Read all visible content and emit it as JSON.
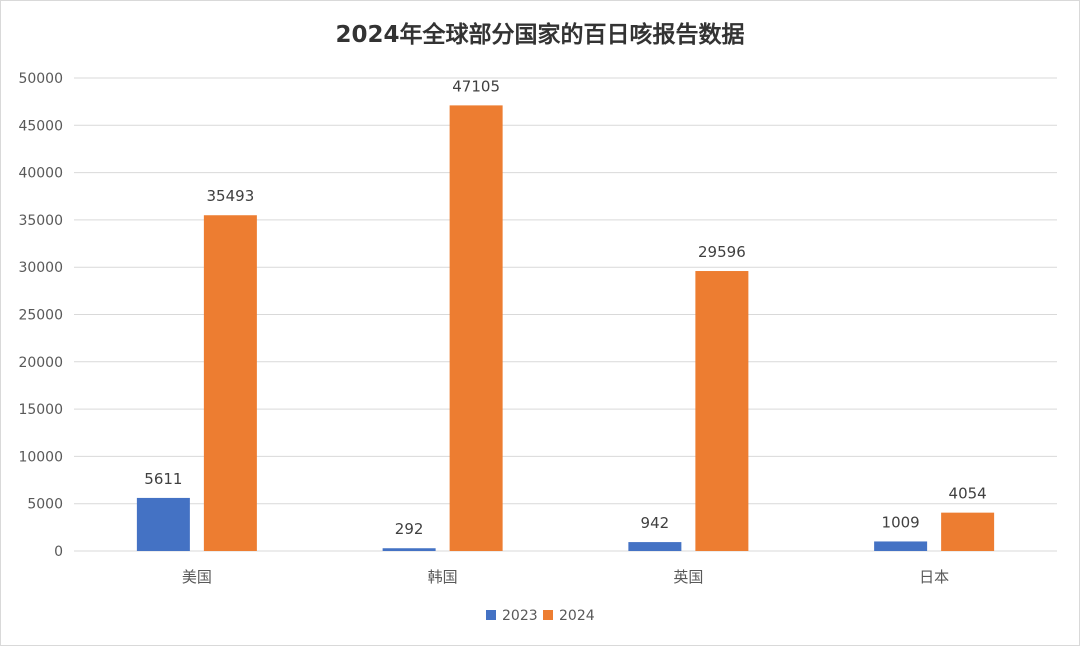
{
  "chart_data": {
    "type": "bar",
    "title": "2024年全球部分国家的百日咳报告数据",
    "categories": [
      "美国",
      "韩国",
      "英国",
      "日本"
    ],
    "series": [
      {
        "name": "2023",
        "values": [
          5611,
          292,
          942,
          1009
        ],
        "color": "#4472c4"
      },
      {
        "name": "2024",
        "values": [
          35493,
          47105,
          29596,
          4054
        ],
        "color": "#ed7d31"
      }
    ],
    "ylim": [
      0,
      50000
    ],
    "yticks": [
      0,
      5000,
      10000,
      15000,
      20000,
      25000,
      30000,
      35000,
      40000,
      45000,
      50000
    ],
    "grid": true,
    "legend_position": "bottom",
    "grid_color": "#d9d9d9"
  }
}
